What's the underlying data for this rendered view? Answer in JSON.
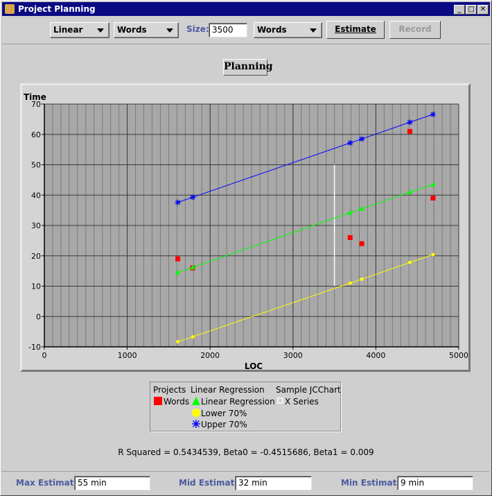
{
  "window": {
    "title": "Project Planning"
  },
  "toolbar": {
    "regression_type": "Linear",
    "x_units": "Words",
    "size_label": "Size:",
    "size_value": "3500",
    "y_units": "Words",
    "estimate_label": "Estimate",
    "record_label": "Record"
  },
  "chart_title": "Planning",
  "chart_data": {
    "type": "scatter",
    "xlabel": "LOC",
    "ylabel": "Time",
    "xlim": [
      0,
      5000
    ],
    "ylim": [
      -10,
      70
    ],
    "x_ticks": [
      0,
      1000,
      2000,
      3000,
      4000,
      5000
    ],
    "y_ticks": [
      -10,
      0,
      10,
      20,
      30,
      40,
      50,
      60,
      70
    ],
    "grid": true,
    "size_marker_x": 3500,
    "series": [
      {
        "name": "Words",
        "marker": "square",
        "color": "#ff0000",
        "points": [
          [
            1610,
            19
          ],
          [
            1790,
            16
          ],
          [
            3690,
            26
          ],
          [
            3830,
            24
          ],
          [
            4410,
            61
          ],
          [
            4690,
            39
          ]
        ]
      },
      {
        "name": "Linear Regression",
        "marker": "triangle",
        "color": "#00ff00",
        "line": true,
        "points": [
          [
            1610,
            14.5
          ],
          [
            1790,
            16.2
          ],
          [
            3690,
            34.2
          ],
          [
            3830,
            35.5
          ],
          [
            4410,
            41
          ],
          [
            4690,
            43.5
          ]
        ]
      },
      {
        "name": "Lower 70%",
        "marker": "circle",
        "color": "#ffff00",
        "line": true,
        "points": [
          [
            1610,
            -8.3
          ],
          [
            1790,
            -6.7
          ],
          [
            3690,
            11
          ],
          [
            3830,
            12.3
          ],
          [
            4410,
            17.8
          ],
          [
            4690,
            20.4
          ]
        ]
      },
      {
        "name": "Upper 70%",
        "marker": "star",
        "color": "#0000ff",
        "line": true,
        "points": [
          [
            1610,
            37.6
          ],
          [
            1790,
            39.3
          ],
          [
            3690,
            57.2
          ],
          [
            3830,
            58.5
          ],
          [
            4410,
            64
          ],
          [
            4690,
            66.6
          ]
        ]
      }
    ]
  },
  "legend": {
    "col1_header": "Projects",
    "col2_header": "Linear Regression",
    "col3_header": "Sample JCChart",
    "words": "Words",
    "linear_regression": "Linear Regression",
    "lower": "Lower 70%",
    "upper": "Upper 70%",
    "x_series": "X Series"
  },
  "stats": "R Squared = 0.5434539,  Beta0 = -0.4515686,  Beta1 = 0.009",
  "estimates": {
    "max_label": "Max Estimate:",
    "max_value": "55 min",
    "mid_label": "Mid Estimate:",
    "mid_value": "32 min",
    "min_label": "Min Estimate:",
    "min_value": "9 min"
  }
}
